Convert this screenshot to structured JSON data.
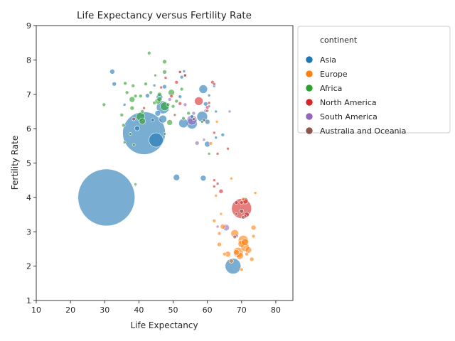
{
  "chart_data": {
    "type": "scatter",
    "title": "Life Expectancy versus Fertility Rate",
    "xlabel": "Life Expectancy",
    "ylabel": "Fertility Rate",
    "xlim": [
      10,
      85
    ],
    "ylim": [
      1,
      9
    ],
    "xticks": [
      10,
      20,
      30,
      40,
      50,
      60,
      70,
      80
    ],
    "yticks": [
      1,
      2,
      3,
      4,
      5,
      6,
      7,
      8,
      9
    ],
    "grid": false,
    "legend": {
      "title": "continent",
      "placement": "outside-top-right"
    },
    "size_encoding": "population",
    "series": [
      {
        "name": "Asia",
        "color": "#1f77b4",
        "points": [
          [
            30.5,
            4.0,
            80
          ],
          [
            41.5,
            5.87,
            60
          ],
          [
            45.0,
            5.67,
            20
          ],
          [
            67.5,
            2.0,
            22
          ],
          [
            47.0,
            6.62,
            18
          ],
          [
            58.5,
            6.35,
            15
          ],
          [
            55.5,
            6.15,
            15
          ],
          [
            53.0,
            6.16,
            13
          ],
          [
            47.0,
            6.28,
            11
          ],
          [
            58.8,
            7.15,
            12
          ],
          [
            46.0,
            6.92,
            9
          ],
          [
            51.0,
            4.58,
            9
          ],
          [
            58.8,
            4.56,
            8
          ],
          [
            60.0,
            5.55,
            8
          ],
          [
            32.2,
            7.66,
            7
          ],
          [
            32.8,
            7.3,
            6
          ],
          [
            39.5,
            6.01,
            7
          ],
          [
            45.5,
            6.45,
            8
          ],
          [
            42.5,
            6.96,
            6
          ],
          [
            47.5,
            7.22,
            6
          ],
          [
            52.5,
            7.5,
            5
          ],
          [
            53.2,
            7.67,
            4
          ],
          [
            60.5,
            6.97,
            4
          ],
          [
            62.0,
            7.24,
            4
          ],
          [
            62.5,
            6.5,
            4
          ],
          [
            35.8,
            6.7,
            4
          ],
          [
            44.5,
            7.26,
            4
          ],
          [
            55.5,
            6.35,
            5
          ],
          [
            59.5,
            6.72,
            6
          ],
          [
            60.0,
            6.2,
            7
          ],
          [
            64.5,
            5.82,
            5
          ],
          [
            62.5,
            5.74,
            4
          ],
          [
            44.0,
            6.25,
            5
          ],
          [
            52.0,
            6.93,
            5
          ]
        ]
      },
      {
        "name": "Europe",
        "color": "#ff7f0e",
        "points": [
          [
            70.5,
            2.75,
            14
          ],
          [
            69.0,
            2.4,
            14
          ],
          [
            71.0,
            2.55,
            12
          ],
          [
            68.0,
            2.95,
            11
          ],
          [
            69.5,
            2.3,
            10
          ],
          [
            70.0,
            2.65,
            10
          ],
          [
            71.0,
            2.7,
            10
          ],
          [
            72.0,
            2.47,
            9
          ],
          [
            66.0,
            2.35,
            8
          ],
          [
            64.5,
            3.15,
            7
          ],
          [
            73.5,
            3.12,
            7
          ],
          [
            63.5,
            2.63,
            6
          ],
          [
            73.0,
            2.2,
            6
          ],
          [
            68.5,
            2.4,
            8
          ],
          [
            67.0,
            2.15,
            6
          ],
          [
            70.0,
            1.9,
            5
          ],
          [
            71.5,
            2.35,
            5
          ],
          [
            62.0,
            3.32,
            5
          ],
          [
            63.5,
            2.95,
            5
          ],
          [
            73.5,
            2.87,
            5
          ],
          [
            62.5,
            4.05,
            4
          ],
          [
            61.0,
            5.57,
            5
          ],
          [
            67.0,
            4.55,
            4
          ],
          [
            74.0,
            4.13,
            4
          ],
          [
            62.8,
            6.2,
            4
          ],
          [
            64.0,
            3.52,
            4
          ],
          [
            70.5,
            3.95,
            5
          ],
          [
            65.0,
            2.35,
            5
          ]
        ]
      },
      {
        "name": "Africa",
        "color": "#2ca02c",
        "points": [
          [
            40.5,
            6.35,
            12
          ],
          [
            47.5,
            6.65,
            12
          ],
          [
            41.0,
            6.22,
            9
          ],
          [
            45.5,
            6.8,
            8
          ],
          [
            49.5,
            7.05,
            9
          ],
          [
            38.0,
            6.85,
            8
          ],
          [
            49.0,
            6.18,
            8
          ],
          [
            47.5,
            7.65,
            6
          ],
          [
            47.5,
            7.95,
            6
          ],
          [
            43.0,
            8.2,
            5
          ],
          [
            29.8,
            6.7,
            5
          ],
          [
            36.0,
            7.32,
            5
          ],
          [
            38.3,
            7.25,
            5
          ],
          [
            36.5,
            7.05,
            5
          ],
          [
            42.0,
            7.3,
            5
          ],
          [
            44.8,
            7.55,
            4
          ],
          [
            46.0,
            7.0,
            6
          ],
          [
            48.5,
            6.7,
            5
          ],
          [
            50.0,
            6.65,
            5
          ],
          [
            52.5,
            7.15,
            5
          ],
          [
            53.0,
            6.3,
            5
          ],
          [
            38.0,
            6.6,
            6
          ],
          [
            35.5,
            6.1,
            5
          ],
          [
            37.5,
            5.85,
            4
          ],
          [
            35.8,
            5.6,
            4
          ],
          [
            38.5,
            5.53,
            4
          ],
          [
            39.0,
            4.38,
            4
          ],
          [
            60.5,
            5.27,
            4
          ],
          [
            58.5,
            6.2,
            4
          ],
          [
            54.5,
            6.45,
            5
          ],
          [
            35.0,
            6.4,
            5
          ],
          [
            40.5,
            6.95,
            5
          ],
          [
            44.5,
            6.75,
            5
          ],
          [
            41.0,
            6.5,
            5
          ],
          [
            47.5,
            5.85,
            4
          ],
          [
            51.0,
            6.8,
            5
          ],
          [
            39.0,
            6.95,
            5
          ],
          [
            43.5,
            7.05,
            5
          ],
          [
            46.0,
            6.85,
            7
          ]
        ]
      },
      {
        "name": "North America",
        "color": "#d62728",
        "points": [
          [
            70.0,
            3.68,
            28
          ],
          [
            57.5,
            6.8,
            12
          ],
          [
            71.0,
            3.9,
            9
          ],
          [
            71.5,
            3.5,
            7
          ],
          [
            71.0,
            3.45,
            5
          ],
          [
            70.0,
            3.85,
            5
          ],
          [
            68.5,
            3.85,
            5
          ],
          [
            64.0,
            4.18,
            6
          ],
          [
            61.5,
            7.35,
            5
          ],
          [
            62.0,
            7.3,
            4
          ],
          [
            53.5,
            7.55,
            5
          ],
          [
            47.8,
            7.48,
            4
          ],
          [
            51.0,
            7.35,
            5
          ],
          [
            52.0,
            7.65,
            4
          ],
          [
            60.5,
            6.75,
            4
          ],
          [
            62.0,
            5.88,
            4
          ],
          [
            66.0,
            5.42,
            4
          ],
          [
            63.0,
            5.27,
            4
          ],
          [
            63.0,
            4.4,
            4
          ],
          [
            62.0,
            4.5,
            4
          ],
          [
            62.0,
            4.32,
            4
          ],
          [
            41.5,
            6.6,
            4
          ],
          [
            52.0,
            6.73,
            5
          ],
          [
            49.5,
            6.95,
            5
          ],
          [
            46.5,
            7.2,
            4
          ],
          [
            60.0,
            6.62,
            5
          ]
        ]
      },
      {
        "name": "South America",
        "color": "#9467bd",
        "points": [
          [
            55.5,
            6.25,
            14
          ],
          [
            65.5,
            3.12,
            9
          ],
          [
            57.0,
            5.58,
            6
          ],
          [
            59.0,
            5.68,
            4
          ],
          [
            56.0,
            6.45,
            5
          ],
          [
            66.5,
            6.5,
            4
          ],
          [
            68.5,
            2.88,
            5
          ],
          [
            53.5,
            6.7,
            5
          ],
          [
            49.0,
            6.85,
            5
          ],
          [
            60.5,
            6.65,
            4
          ],
          [
            59.5,
            6.52,
            5
          ],
          [
            63.0,
            3.15,
            4
          ]
        ]
      },
      {
        "name": "Australia and Oceania",
        "color": "#8c564b",
        "points": [
          [
            38.5,
            6.28,
            5
          ],
          [
            70.0,
            3.6,
            6
          ],
          [
            70.5,
            3.42,
            5
          ],
          [
            68.5,
            3.52,
            4
          ],
          [
            52.0,
            7.65,
            4
          ],
          [
            50.5,
            6.4,
            4
          ],
          [
            53.5,
            7.55,
            4
          ],
          [
            68.0,
            2.85,
            5
          ],
          [
            59.0,
            6.25,
            4
          ],
          [
            60.0,
            6.52,
            4
          ],
          [
            56.0,
            6.28,
            4
          ]
        ]
      }
    ]
  }
}
